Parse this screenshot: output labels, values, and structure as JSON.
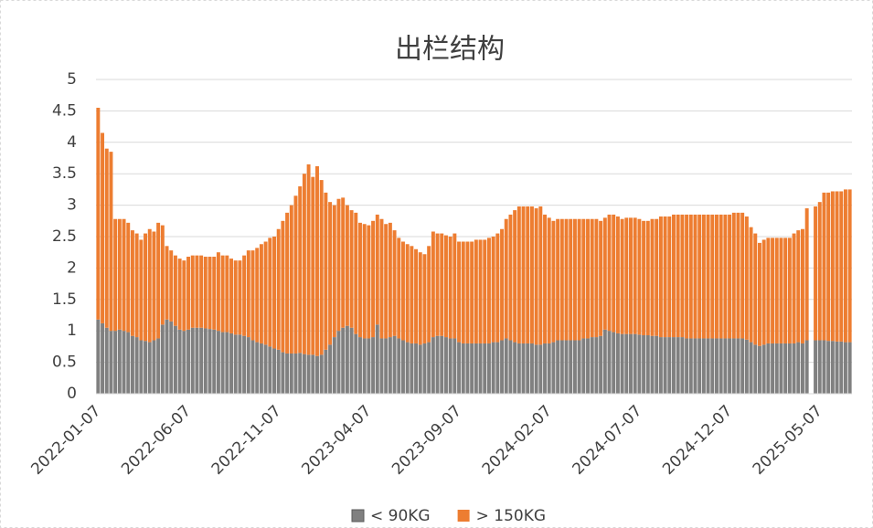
{
  "chart_data": {
    "type": "stacked_bar",
    "title": "出栏结构",
    "categories": [
      "2022-01-07",
      null,
      null,
      null,
      null,
      null,
      null,
      null,
      null,
      null,
      null,
      null,
      null,
      null,
      null,
      null,
      null,
      null,
      null,
      null,
      null,
      "2022-06-07",
      null,
      null,
      null,
      null,
      null,
      null,
      null,
      null,
      null,
      null,
      null,
      null,
      null,
      null,
      null,
      null,
      null,
      null,
      null,
      null,
      "2022-11-07",
      null,
      null,
      null,
      null,
      null,
      null,
      null,
      null,
      null,
      null,
      null,
      null,
      null,
      null,
      null,
      null,
      null,
      null,
      null,
      null,
      "2023-04-07",
      null,
      null,
      null,
      null,
      null,
      null,
      null,
      null,
      null,
      null,
      null,
      null,
      null,
      null,
      null,
      null,
      null,
      null,
      null,
      null,
      "2023-09-07",
      null,
      null,
      null,
      null,
      null,
      null,
      null,
      null,
      null,
      null,
      null,
      null,
      null,
      null,
      null,
      null,
      null,
      null,
      null,
      null,
      "2024-02-07",
      null,
      null,
      null,
      null,
      null,
      null,
      null,
      null,
      null,
      null,
      null,
      null,
      null,
      null,
      null,
      null,
      null,
      null,
      null,
      null,
      "2024-07-07",
      null,
      null,
      null,
      null,
      null,
      null,
      null,
      null,
      null,
      null,
      null,
      null,
      null,
      null,
      null,
      null,
      null,
      null,
      null,
      null,
      "2024-12-07",
      null,
      null,
      null,
      null,
      null,
      null,
      null,
      null,
      null,
      null,
      null,
      null,
      null,
      null,
      null,
      null,
      null,
      null,
      null,
      null,
      "2025-05-07",
      null,
      null,
      null,
      null,
      null,
      null,
      null
    ],
    "series": [
      {
        "name": "< 90KG",
        "color": "#808080",
        "values": [
          1.18,
          1.12,
          1.05,
          1.0,
          1.0,
          1.02,
          1.0,
          0.98,
          0.92,
          0.9,
          0.85,
          0.84,
          0.82,
          0.85,
          0.88,
          1.1,
          1.18,
          1.15,
          1.08,
          1.02,
          1.0,
          1.02,
          1.05,
          1.05,
          1.05,
          1.04,
          1.03,
          1.02,
          1.0,
          0.98,
          0.98,
          0.96,
          0.94,
          0.94,
          0.92,
          0.9,
          0.85,
          0.82,
          0.8,
          0.78,
          0.75,
          0.72,
          0.7,
          0.66,
          0.64,
          0.64,
          0.64,
          0.65,
          0.63,
          0.62,
          0.62,
          0.6,
          0.62,
          0.7,
          0.78,
          0.9,
          1.0,
          1.05,
          1.08,
          1.05,
          0.95,
          0.9,
          0.88,
          0.88,
          0.9,
          1.1,
          0.88,
          0.88,
          0.9,
          0.92,
          0.88,
          0.85,
          0.82,
          0.8,
          0.8,
          0.78,
          0.8,
          0.82,
          0.9,
          0.92,
          0.92,
          0.9,
          0.88,
          0.88,
          0.82,
          0.8,
          0.8,
          0.8,
          0.8,
          0.8,
          0.8,
          0.8,
          0.82,
          0.82,
          0.85,
          0.88,
          0.85,
          0.82,
          0.8,
          0.8,
          0.8,
          0.8,
          0.78,
          0.78,
          0.8,
          0.8,
          0.82,
          0.85,
          0.85,
          0.85,
          0.85,
          0.85,
          0.85,
          0.88,
          0.88,
          0.9,
          0.9,
          0.92,
          1.02,
          1.0,
          0.98,
          0.96,
          0.95,
          0.95,
          0.95,
          0.95,
          0.94,
          0.93,
          0.93,
          0.92,
          0.92,
          0.9,
          0.9,
          0.9,
          0.9,
          0.9,
          0.9,
          0.88,
          0.88,
          0.88,
          0.88,
          0.88,
          0.88,
          0.88,
          0.88,
          0.88,
          0.88,
          0.88,
          0.88,
          0.88,
          0.88,
          0.86,
          0.82,
          0.78,
          0.76,
          0.78,
          0.8,
          0.8,
          0.8,
          0.8,
          0.8,
          0.8,
          0.8,
          0.82,
          0.8,
          0.85,
          null,
          0.85,
          0.85,
          0.85,
          0.84,
          0.84,
          0.83,
          0.83,
          0.82,
          0.82
        ]
      },
      {
        "name": "> 150KG",
        "color": "#ed7d31",
        "values": [
          3.37,
          3.03,
          2.85,
          2.85,
          1.78,
          1.76,
          1.78,
          1.74,
          1.68,
          1.65,
          1.6,
          1.71,
          1.8,
          1.73,
          1.84,
          1.58,
          1.17,
          1.13,
          1.12,
          1.13,
          1.12,
          1.16,
          1.15,
          1.15,
          1.15,
          1.14,
          1.15,
          1.16,
          1.25,
          1.22,
          1.22,
          1.19,
          1.18,
          1.18,
          1.28,
          1.38,
          1.43,
          1.5,
          1.58,
          1.64,
          1.73,
          1.78,
          1.92,
          2.09,
          2.24,
          2.36,
          2.51,
          2.65,
          2.87,
          3.03,
          2.83,
          3.02,
          2.78,
          2.5,
          2.27,
          2.1,
          2.1,
          2.07,
          1.92,
          1.87,
          1.93,
          1.82,
          1.82,
          1.8,
          1.85,
          1.75,
          1.9,
          1.82,
          1.82,
          1.68,
          1.6,
          1.57,
          1.56,
          1.55,
          1.5,
          1.47,
          1.42,
          1.53,
          1.68,
          1.63,
          1.63,
          1.62,
          1.62,
          1.67,
          1.6,
          1.62,
          1.62,
          1.62,
          1.65,
          1.65,
          1.65,
          1.68,
          1.68,
          1.73,
          1.77,
          1.9,
          2.0,
          2.1,
          2.18,
          2.18,
          2.18,
          2.18,
          2.17,
          2.2,
          2.05,
          2.0,
          1.93,
          1.93,
          1.93,
          1.93,
          1.93,
          1.93,
          1.93,
          1.9,
          1.9,
          1.88,
          1.88,
          1.83,
          1.78,
          1.85,
          1.87,
          1.86,
          1.83,
          1.85,
          1.85,
          1.85,
          1.84,
          1.82,
          1.82,
          1.86,
          1.86,
          1.92,
          1.92,
          1.92,
          1.95,
          1.95,
          1.95,
          1.97,
          1.97,
          1.97,
          1.97,
          1.97,
          1.97,
          1.97,
          1.97,
          1.97,
          1.97,
          1.97,
          2.0,
          2.0,
          2.0,
          1.96,
          1.83,
          1.77,
          1.64,
          1.67,
          1.68,
          1.68,
          1.68,
          1.68,
          1.68,
          1.68,
          1.75,
          1.78,
          1.82,
          2.1,
          null,
          2.13,
          2.2,
          2.35,
          2.36,
          2.38,
          2.39,
          2.39,
          2.43,
          2.43
        ]
      }
    ],
    "ylim": [
      0,
      5
    ],
    "yticks": [
      0,
      0.5,
      1,
      1.5,
      2,
      2.5,
      3,
      3.5,
      4,
      4.5,
      5
    ],
    "grid": true,
    "legend": "bottom"
  }
}
